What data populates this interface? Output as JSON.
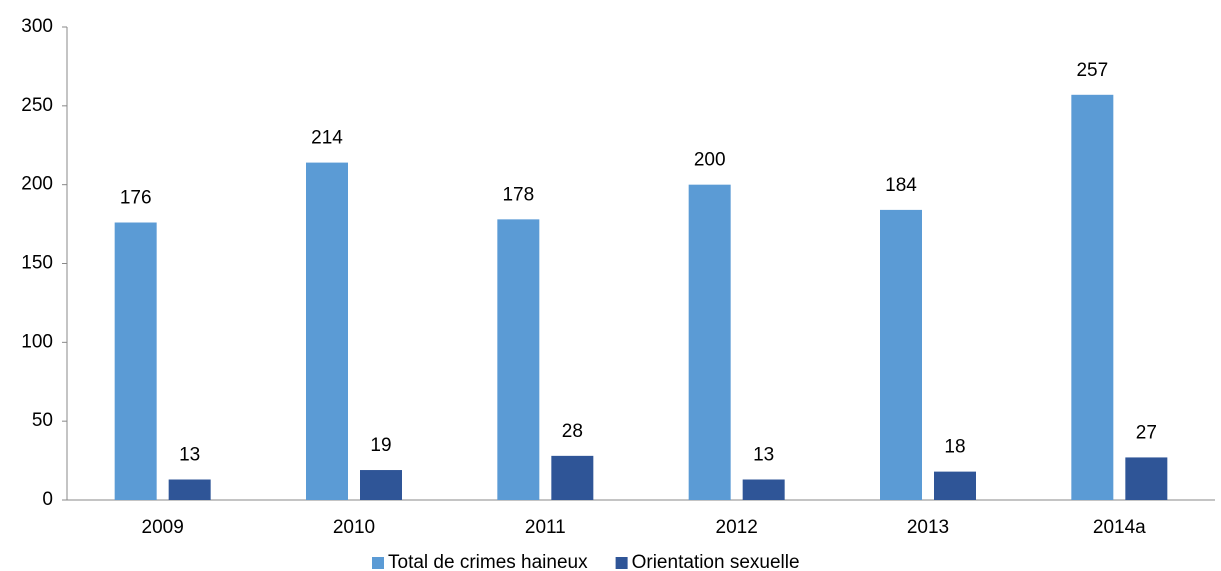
{
  "chart_data": {
    "type": "bar",
    "categories": [
      "2009",
      "2010",
      "2011",
      "2012",
      "2013",
      "2014a"
    ],
    "series": [
      {
        "name": "Total de crimes haineux",
        "color": "#5b9bd5",
        "values": [
          176,
          214,
          178,
          200,
          184,
          257
        ]
      },
      {
        "name": "Orientation sexuelle",
        "color": "#2f5597",
        "values": [
          13,
          19,
          28,
          13,
          18,
          27
        ]
      }
    ],
    "ylim": [
      0,
      300
    ],
    "yticks": [
      0,
      50,
      100,
      150,
      200,
      250,
      300
    ],
    "grid": false,
    "legend": "bottom"
  }
}
